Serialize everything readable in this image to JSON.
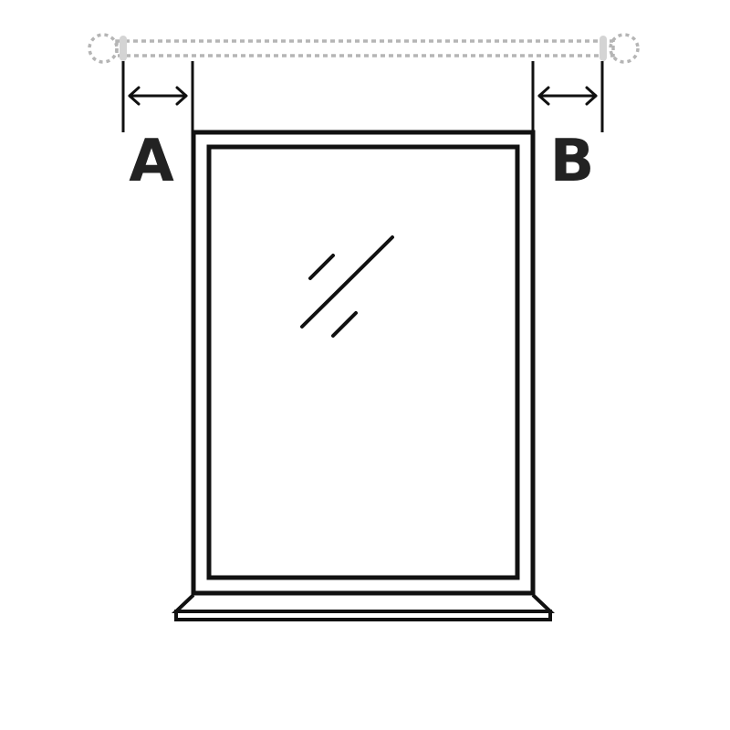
{
  "labels": {
    "left_offset": "A",
    "right_offset": "B"
  },
  "colors": {
    "line": "#111111",
    "text": "#222222",
    "rod": "#b5b5b5",
    "rod_end": "#d4d4d4",
    "background": "#ffffff"
  },
  "icons": {
    "double_arrow": "double-arrow-icon",
    "glass_reflection": "glass-reflection-icon"
  }
}
